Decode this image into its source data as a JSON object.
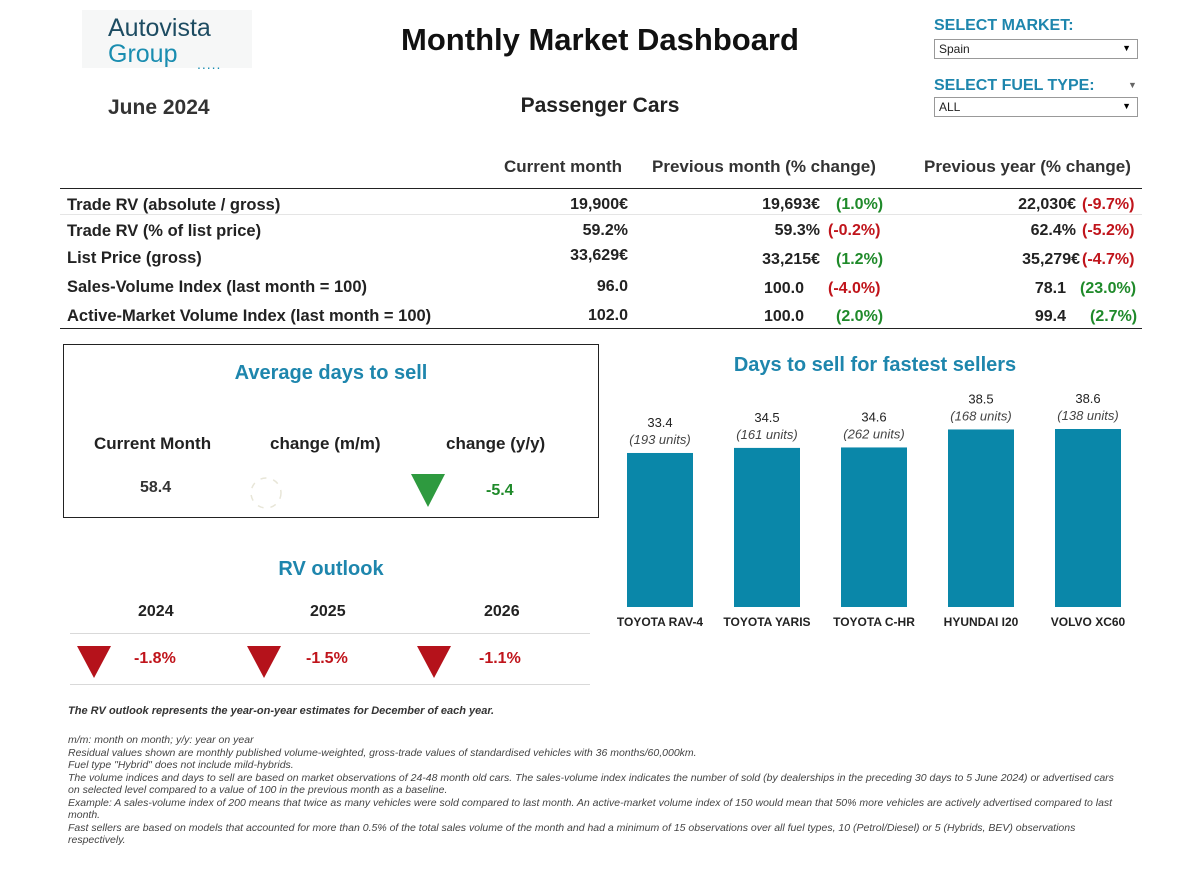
{
  "logo": {
    "line1": "Autovista",
    "line2": "Group",
    "dots": "....."
  },
  "header": {
    "title": "Monthly Market Dashboard",
    "month": "June 2024",
    "subtitle": "Passenger Cars"
  },
  "filters": {
    "market_label": "SELECT MARKET:",
    "market_value": "Spain",
    "fuel_label": "SELECT FUEL TYPE:",
    "fuel_value": "ALL"
  },
  "table": {
    "headers": [
      "Current month",
      "Previous month (% change)",
      "Previous year (% change)"
    ],
    "rows": [
      {
        "label": "Trade RV (absolute / gross)",
        "current": "19,900€",
        "prev": "19,693€",
        "prev_pct": "(1.0%)",
        "year": "22,030€",
        "year_pct": "(-9.7%)"
      },
      {
        "label": "Trade RV (% of list price)",
        "current": "59.2%",
        "prev": "59.3%",
        "prev_pct": "(-0.2%)",
        "year": "62.4%",
        "year_pct": "(-5.2%)"
      },
      {
        "label": "List Price (gross)",
        "current": "33,629€",
        "prev": "33,215€",
        "prev_pct": "(1.2%)",
        "year": "35,279€",
        "year_pct": "(-4.7%)"
      },
      {
        "label": "Sales-Volume Index (last month = 100)",
        "current": "96.0",
        "prev": "100.0",
        "prev_pct": "(-4.0%)",
        "year": "78.1",
        "year_pct": "(23.0%)"
      },
      {
        "label": "Active-Market Volume Index (last month = 100)",
        "current": "102.0",
        "prev": "100.0",
        "prev_pct": "(2.0%)",
        "year": "99.4",
        "year_pct": "(2.7%)"
      }
    ]
  },
  "days_to_sell": {
    "title": "Average days to sell",
    "col_current": "Current Month",
    "col_mm": "change (m/m)",
    "col_yy": "change (y/y)",
    "current": "58.4",
    "yy": "-5.4"
  },
  "rv_outlook": {
    "title": "RV outlook",
    "years": [
      "2024",
      "2025",
      "2026"
    ],
    "values": [
      "-1.8%",
      "-1.5%",
      "-1.1%"
    ]
  },
  "chart_data": {
    "type": "bar",
    "title": "Days to sell for fastest sellers",
    "categories": [
      "TOYOTA RAV-4",
      "TOYOTA YARIS",
      "TOYOTA C-HR",
      "HYUNDAI I20",
      "VOLVO XC60"
    ],
    "values": [
      33.4,
      34.5,
      34.6,
      38.5,
      38.6
    ],
    "value_labels": [
      "33.4",
      "34.5",
      "34.6",
      "38.5",
      "38.6"
    ],
    "units": [
      "(193  units)",
      "(161  units)",
      "(262  units)",
      "(168  units)",
      "(138  units)"
    ],
    "ylim": [
      0,
      38.6
    ],
    "color": "#0a87a9"
  },
  "colors": {
    "accent": "#1e86ad",
    "positive": "#1f8a2a",
    "negative": "#c0141b"
  },
  "notes": {
    "bold": "The RV outlook represents the year-on-year estimates for December of each year.",
    "lines": [
      "m/m: month on month; y/y: year on year",
      "Residual values shown are monthly published volume-weighted, gross-trade values of standardised vehicles with 36 months/60,000km.",
      "Fuel type \"Hybrid\" does not include mild-hybrids.",
      "The volume indices and days to sell are based on market observations of 24-48 month old cars. The sales-volume index indicates the number of sold (by dealerships in the preceding 30 days to 5 June 2024) or advertised cars on selected level compared to a value of 100 in the previous month as a baseline.",
      "Example: A sales-volume index of 200 means that twice as many vehicles were sold compared to last month. An active-market volume index of 150 would mean that 50% more vehicles are actively advertised compared to last month.",
      "Fast sellers are based on models that accounted for more than 0.5% of the total sales volume of the month and had a minimum of 15 observations over all fuel types, 10 (Petrol/Diesel) or 5 (Hybrids, BEV) observations respectively."
    ]
  }
}
